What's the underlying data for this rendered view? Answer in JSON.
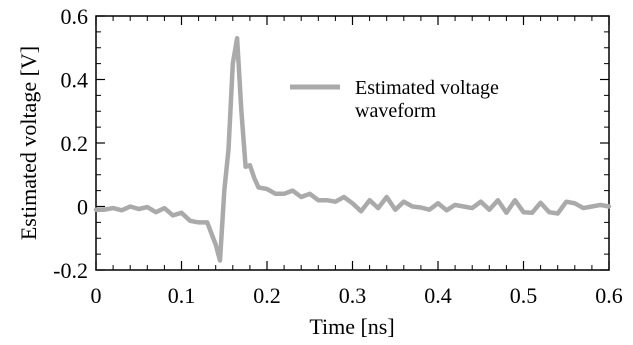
{
  "chart_data": {
    "type": "line",
    "xlabel": "Time [ns]",
    "ylabel": "Estimated voltage [V]",
    "xlim": [
      0,
      0.6
    ],
    "ylim": [
      -0.2,
      0.6
    ],
    "x_ticks": [
      0,
      0.1,
      0.2,
      0.3,
      0.4,
      0.5,
      0.6
    ],
    "y_ticks": [
      -0.2,
      0,
      0.2,
      0.4,
      0.6
    ],
    "x_tick_labels": [
      "0",
      "0.1",
      "0.2",
      "0.3",
      "0.4",
      "0.5",
      "0.6"
    ],
    "y_tick_labels": [
      "-0.2",
      "0",
      "0.2",
      "0.4",
      "0.6"
    ],
    "grid": false,
    "legend_position": "top-right",
    "series": [
      {
        "name": "Estimated voltage waveform",
        "color": "#aaaaaa",
        "x": [
          0.0,
          0.01,
          0.02,
          0.03,
          0.04,
          0.05,
          0.06,
          0.07,
          0.08,
          0.09,
          0.1,
          0.11,
          0.12,
          0.13,
          0.14,
          0.145,
          0.15,
          0.155,
          0.16,
          0.165,
          0.17,
          0.175,
          0.18,
          0.185,
          0.19,
          0.2,
          0.21,
          0.22,
          0.23,
          0.24,
          0.25,
          0.26,
          0.27,
          0.28,
          0.29,
          0.3,
          0.31,
          0.32,
          0.33,
          0.34,
          0.35,
          0.36,
          0.37,
          0.38,
          0.39,
          0.4,
          0.41,
          0.42,
          0.43,
          0.44,
          0.45,
          0.46,
          0.47,
          0.48,
          0.49,
          0.5,
          0.51,
          0.52,
          0.53,
          0.54,
          0.55,
          0.56,
          0.57,
          0.58,
          0.59,
          0.6
        ],
        "y": [
          -0.01,
          -0.01,
          -0.005,
          -0.012,
          0.0,
          -0.008,
          -0.002,
          -0.018,
          -0.005,
          -0.028,
          -0.02,
          -0.045,
          -0.05,
          -0.05,
          -0.12,
          -0.17,
          0.05,
          0.18,
          0.45,
          0.53,
          0.3,
          0.125,
          0.13,
          0.09,
          0.06,
          0.055,
          0.04,
          0.04,
          0.05,
          0.03,
          0.04,
          0.02,
          0.02,
          0.015,
          0.03,
          0.01,
          -0.015,
          0.02,
          -0.005,
          0.03,
          -0.01,
          0.015,
          0.0,
          -0.003,
          -0.01,
          0.01,
          -0.012,
          0.005,
          0.0,
          -0.005,
          0.015,
          -0.01,
          0.02,
          -0.02,
          0.02,
          -0.018,
          -0.02,
          0.012,
          -0.018,
          -0.022,
          0.015,
          0.01,
          -0.005,
          0.0,
          0.005,
          0.0
        ]
      }
    ]
  }
}
